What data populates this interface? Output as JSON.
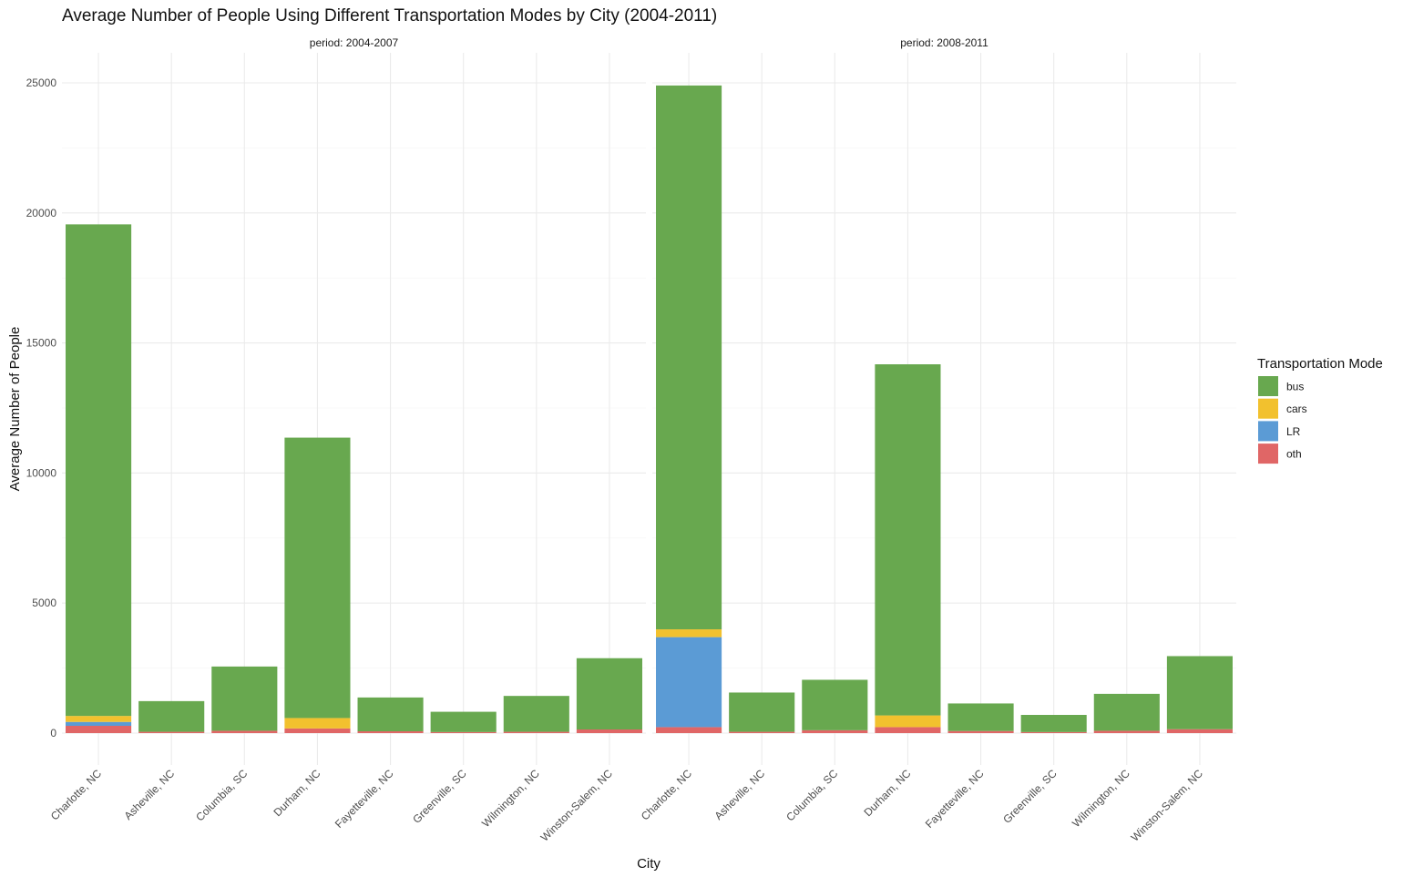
{
  "chart_data": {
    "type": "bar",
    "stacked": true,
    "title": "Average Number of People Using Different Transportation Modes by City (2004-2011)",
    "xlabel": "City",
    "ylabel": "Average Number of People",
    "ylim": [
      0,
      26000
    ],
    "yticks": [
      0,
      5000,
      10000,
      15000,
      20000,
      25000
    ],
    "legend_title": "Transportation Mode",
    "legend_position": "right",
    "grid": true,
    "categories": [
      "Charlotte, NC",
      "Asheville, NC",
      "Columbia, SC",
      "Durham, NC",
      "Fayetteville, NC",
      "Greenville, SC",
      "Wilmington, NC",
      "Winston-Salem, NC"
    ],
    "modes": [
      {
        "name": "bus",
        "color": "#68A84F"
      },
      {
        "name": "cars",
        "color": "#F2C12E"
      },
      {
        "name": "LR",
        "color": "#5B9BD5"
      },
      {
        "name": "oth",
        "color": "#E06666"
      }
    ],
    "facets": [
      {
        "label": "period: 2004-2007",
        "series": [
          {
            "name": "oth",
            "values": [
              280,
              50,
              90,
              180,
              70,
              40,
              50,
              140
            ]
          },
          {
            "name": "LR",
            "values": [
              150,
              0,
              0,
              0,
              0,
              0,
              0,
              0
            ]
          },
          {
            "name": "cars",
            "values": [
              230,
              0,
              0,
              400,
              0,
              0,
              0,
              0
            ]
          },
          {
            "name": "bus",
            "values": [
              18900,
              1180,
              2470,
              10780,
              1300,
              780,
              1380,
              2740
            ]
          }
        ]
      },
      {
        "label": "period: 2008-2011",
        "series": [
          {
            "name": "oth",
            "values": [
              230,
              50,
              110,
              230,
              80,
              40,
              90,
              150
            ]
          },
          {
            "name": "LR",
            "values": [
              3460,
              0,
              0,
              0,
              0,
              0,
              0,
              0
            ]
          },
          {
            "name": "cars",
            "values": [
              300,
              0,
              0,
              450,
              0,
              0,
              0,
              0
            ]
          },
          {
            "name": "bus",
            "values": [
              20910,
              1510,
              1940,
              13500,
              1060,
              660,
              1420,
              2810
            ]
          }
        ]
      }
    ]
  }
}
